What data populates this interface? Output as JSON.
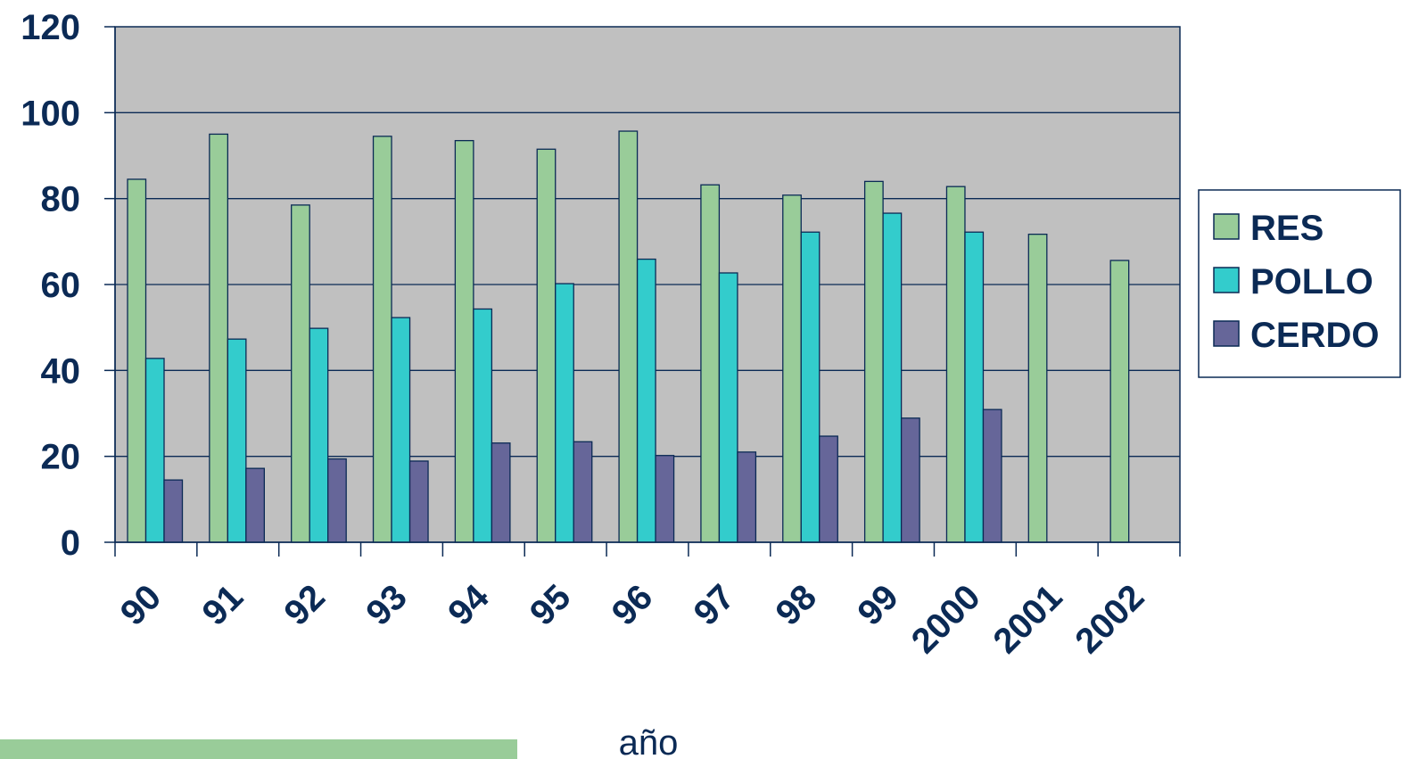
{
  "chart_data": {
    "type": "bar",
    "categories": [
      "90",
      "91",
      "92",
      "93",
      "94",
      "95",
      "96",
      "97",
      "98",
      "99",
      "2000",
      "2001",
      "2002"
    ],
    "series": [
      {
        "name": "RES",
        "color": "#99cc99",
        "values": [
          84.5,
          95,
          78.5,
          94.5,
          93.5,
          91.5,
          95.7,
          83.2,
          80.8,
          84,
          82.8,
          71.7,
          65.6
        ]
      },
      {
        "name": "POLLO",
        "color": "#33cccc",
        "values": [
          42.8,
          47.3,
          49.8,
          52.3,
          54.3,
          60.2,
          65.9,
          62.7,
          72.2,
          76.6,
          72.2,
          null,
          null
        ]
      },
      {
        "name": "CERDO",
        "color": "#666699",
        "values": [
          14.5,
          17.2,
          19.4,
          18.9,
          23.1,
          23.4,
          20.2,
          21,
          24.7,
          28.9,
          30.9,
          null,
          null
        ]
      }
    ],
    "ylim": [
      0,
      120
    ],
    "yticks": [
      "0",
      "20",
      "40",
      "60",
      "80",
      "100",
      "120"
    ],
    "xlabel": "año",
    "ylabel": "",
    "grid": true,
    "plot_background": "#c0c0c0",
    "bar_outline": "#0b2a55",
    "text_color": "#0b2a55",
    "legend_position": "right"
  },
  "decoration": {
    "accent_color": "#99cc99"
  }
}
